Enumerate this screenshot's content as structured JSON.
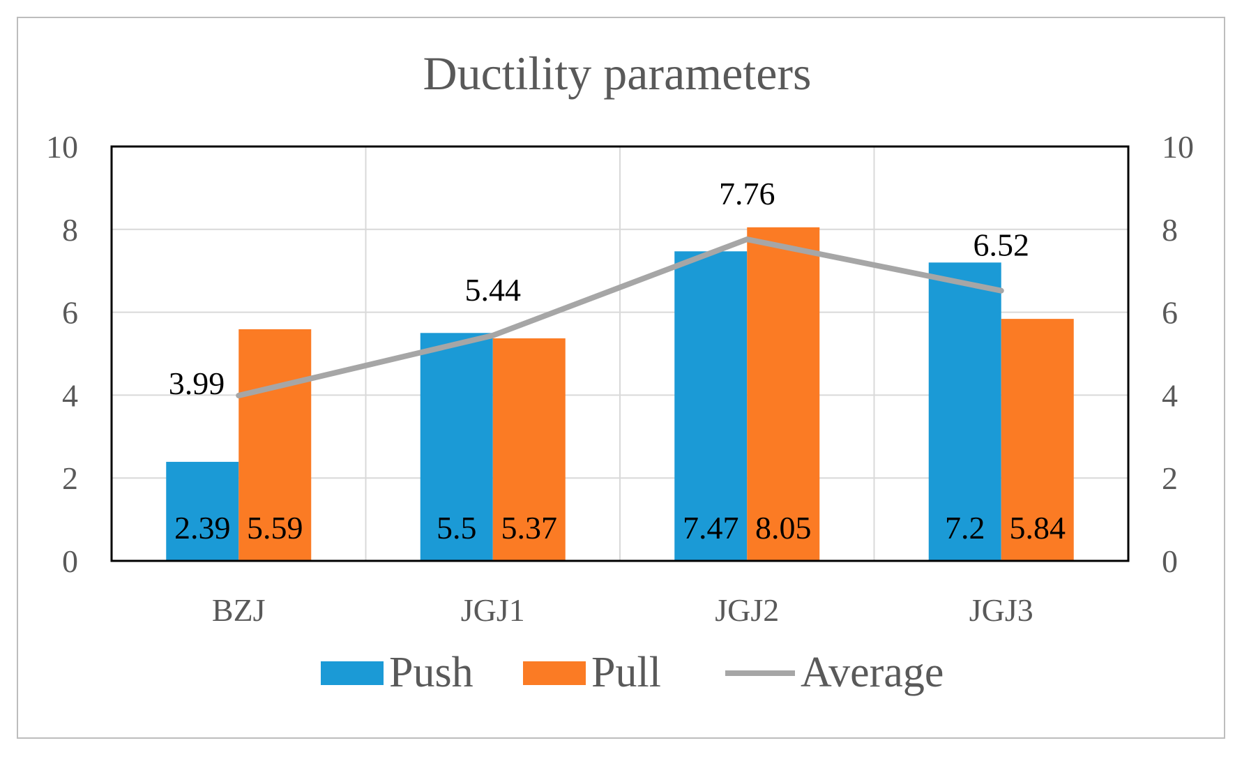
{
  "chart_data": {
    "type": "bar",
    "title": "Ductility parameters",
    "categories": [
      "BZJ",
      "JGJ1",
      "JGJ2",
      "JGJ3"
    ],
    "series": [
      {
        "name": "Push",
        "kind": "bar",
        "color": "#1b9ad6",
        "values": [
          2.39,
          5.5,
          7.47,
          7.2
        ],
        "labels": [
          "2.39",
          "5.5",
          "7.47",
          "7.2"
        ]
      },
      {
        "name": "Pull",
        "kind": "bar",
        "color": "#fb7b24",
        "values": [
          5.59,
          5.37,
          8.05,
          5.84
        ],
        "labels": [
          "5.59",
          "5.37",
          "8.05",
          "5.84"
        ]
      },
      {
        "name": "Average",
        "kind": "line",
        "color": "#a6a6a6",
        "values": [
          3.99,
          5.44,
          7.76,
          6.52
        ],
        "labels": [
          "3.99",
          "5.44",
          "7.76",
          "6.52"
        ]
      }
    ],
    "ylim": [
      0,
      10
    ],
    "yticks": [
      "0",
      "2",
      "4",
      "6",
      "8",
      "10"
    ],
    "y2ticks": [
      "0",
      "2",
      "4",
      "6",
      "8",
      "10"
    ],
    "xlabel": "",
    "ylabel": "",
    "legend_position": "bottom",
    "grid": true
  }
}
